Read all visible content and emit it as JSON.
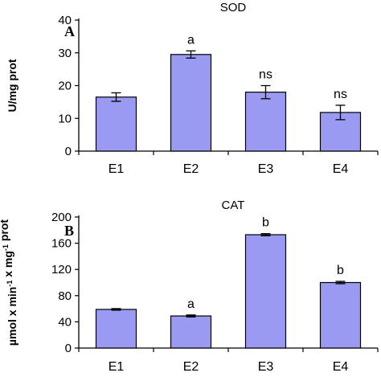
{
  "chart_data": [
    {
      "type": "bar",
      "title": "SOD",
      "panel_label": "A",
      "ylabel": "U/mg prot",
      "categories": [
        "E1",
        "E2",
        "E3",
        "E4"
      ],
      "values": [
        16.5,
        29.5,
        18,
        11.8
      ],
      "errors": [
        1.3,
        1.1,
        2.0,
        2.2
      ],
      "annotations": [
        "",
        "a",
        "ns",
        "ns"
      ],
      "ylim": [
        0,
        40
      ],
      "yticks": [
        0,
        10,
        20,
        30,
        40
      ],
      "bar_color": "#9a9af2"
    },
    {
      "type": "bar",
      "title": "CAT",
      "panel_label": "B",
      "ylabel": "µmol x min-1 x mg-1 prot",
      "ylabel_parts": [
        {
          "text": "µmol x min",
          "sup": false
        },
        {
          "text": "-1",
          "sup": true
        },
        {
          "text": " x mg",
          "sup": false
        },
        {
          "text": "-1",
          "sup": true
        },
        {
          "text": " prot",
          "sup": false
        }
      ],
      "categories": [
        "E1",
        "E2",
        "E3",
        "E4"
      ],
      "values": [
        59,
        49,
        173,
        100
      ],
      "errors": [
        1.2,
        1.5,
        1.6,
        1.8
      ],
      "annotations": [
        "",
        "a",
        "b",
        "b"
      ],
      "ylim": [
        0,
        200
      ],
      "yticks": [
        0,
        40,
        80,
        120,
        160,
        200
      ],
      "bar_color": "#9a9af2"
    }
  ]
}
